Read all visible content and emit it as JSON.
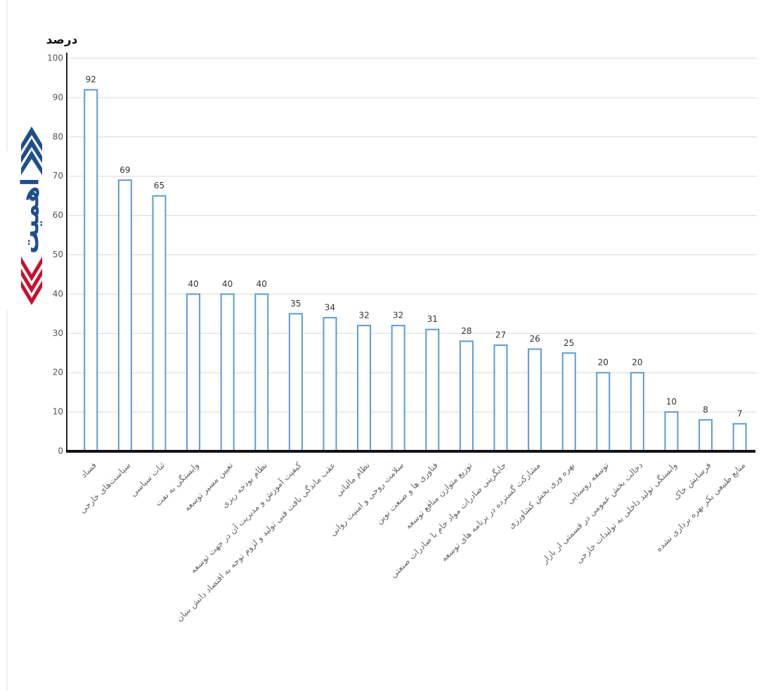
{
  "logo": {
    "text": "اهمیت"
  },
  "chart_data": {
    "type": "bar",
    "y_label": "درصد",
    "categories": [
      "فساد",
      "سیاست‌های خارجی",
      "ثبات سیاسی",
      "وابستگی به نفت",
      "تعیین مسیر توسعه",
      "نظام بودجه ریزی",
      "کیفیت آموزش و مدیریت آن در جهت توسعه",
      "عقب ماندگی بافت فنی تولید و لزوم توجه به اقتصاد دانش بنیان",
      "نظام مالیاتی",
      "سلامت روحی و امنیت روانی",
      "فناوری ها و صنعت نوین",
      "توزیع متوازن منافع توسعه",
      "جایگزینی صادرات مواد خام با صادرات صنعتی",
      "مشارکت گسترده در برنامه های توسعه",
      "بهره وری بخش کشاورزی",
      "توسعه روستایی",
      "دخالت بخش عمومی در قسمتی از بازار",
      "وابستگی تولید داخلی به تولیدات خارجی",
      "فرسایش خاک",
      "منابع طبیعی بکر بهره برداری نشده"
    ],
    "values": [
      92,
      69,
      65,
      40,
      40,
      40,
      35,
      34,
      32,
      32,
      31,
      28,
      27,
      26,
      25,
      20,
      20,
      10,
      8,
      7
    ],
    "color": "#5b9bd5",
    "ylim": [
      0,
      100
    ],
    "yticks": [
      0,
      10,
      20,
      30,
      40,
      50,
      60,
      70,
      80,
      90,
      100
    ],
    "grid": true
  }
}
